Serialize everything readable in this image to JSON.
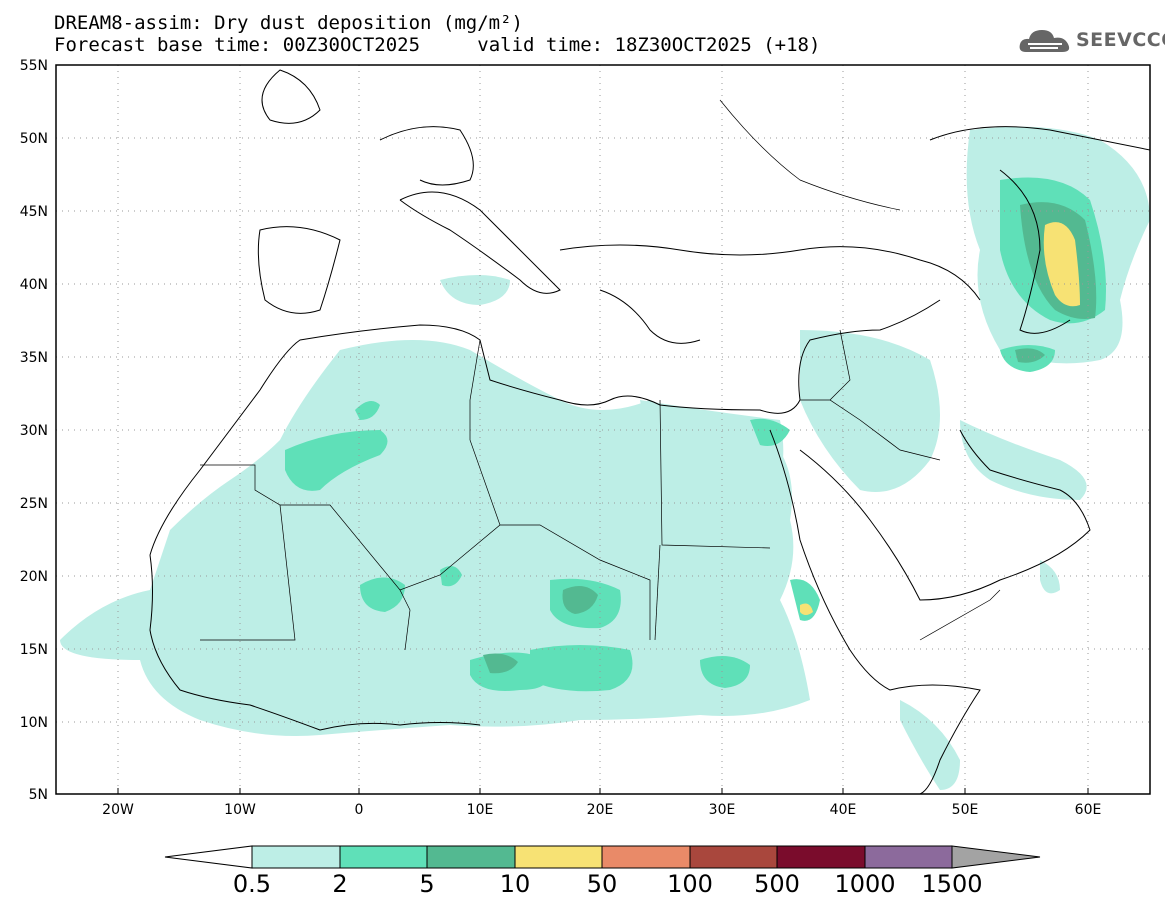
{
  "title": {
    "line1": "DREAM8-assim: Dry dust deposition (mg/m²)",
    "line2_base": "Forecast base time: 00Z30OCT2025",
    "line2_valid": "valid time: 18Z30OCT2025 (+18)"
  },
  "logo": {
    "text": "SEEVCCC"
  },
  "axes": {
    "lat_labels": [
      "55N",
      "50N",
      "45N",
      "40N",
      "35N",
      "30N",
      "25N",
      "20N",
      "15N",
      "10N",
      "5N"
    ],
    "lon_labels": [
      "20W",
      "10W",
      "0",
      "10E",
      "20E",
      "30E",
      "40E",
      "50E",
      "60E"
    ],
    "lat_range": [
      5,
      55
    ],
    "lon_range": [
      -25,
      65
    ]
  },
  "colorbar": {
    "labels": [
      "0.5",
      "2",
      "5",
      "10",
      "50",
      "100",
      "500",
      "1000",
      "1500"
    ],
    "colors": [
      "#ffffff",
      "#bdeee6",
      "#5fe0b8",
      "#53b991",
      "#f7e274",
      "#e98a68",
      "#a9473d",
      "#7a0c2c",
      "#8c6a9c",
      "#a3a3a3"
    ]
  }
}
